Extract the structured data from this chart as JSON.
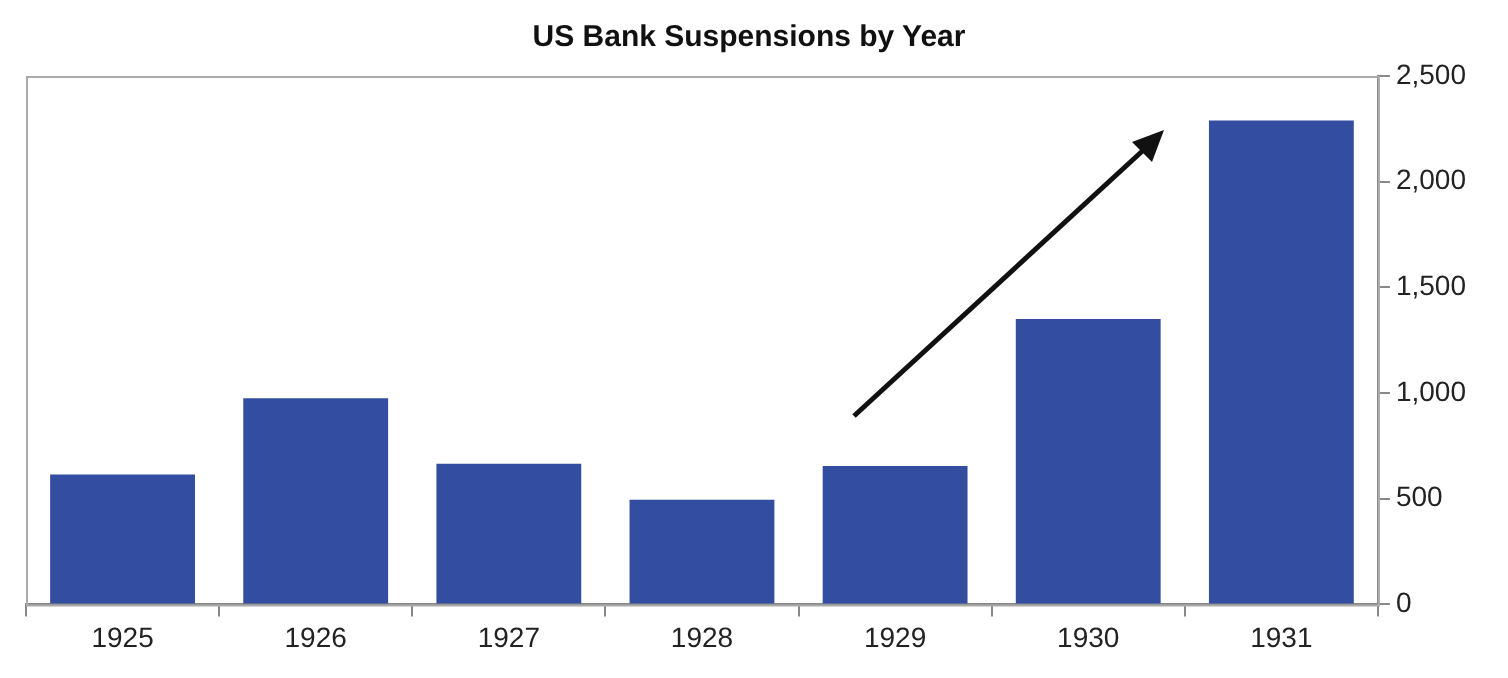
{
  "chart_data": {
    "type": "bar",
    "title": "US Bank Suspensions by Year",
    "categories": [
      "1925",
      "1926",
      "1927",
      "1928",
      "1929",
      "1930",
      "1931"
    ],
    "values": [
      615,
      975,
      665,
      495,
      655,
      1350,
      2290
    ],
    "color": "#334ea0",
    "ylim": [
      0,
      2500
    ],
    "yticks": [
      0,
      {
        "value": 500,
        "label": "500"
      },
      {
        "value": 1000,
        "label": "1,000"
      },
      {
        "value": 1500,
        "label": "1,500"
      },
      {
        "value": 2000,
        "label": "2,000"
      },
      {
        "value": 2500,
        "label": "2,500"
      }
    ],
    "grid": false,
    "legend": false
  }
}
